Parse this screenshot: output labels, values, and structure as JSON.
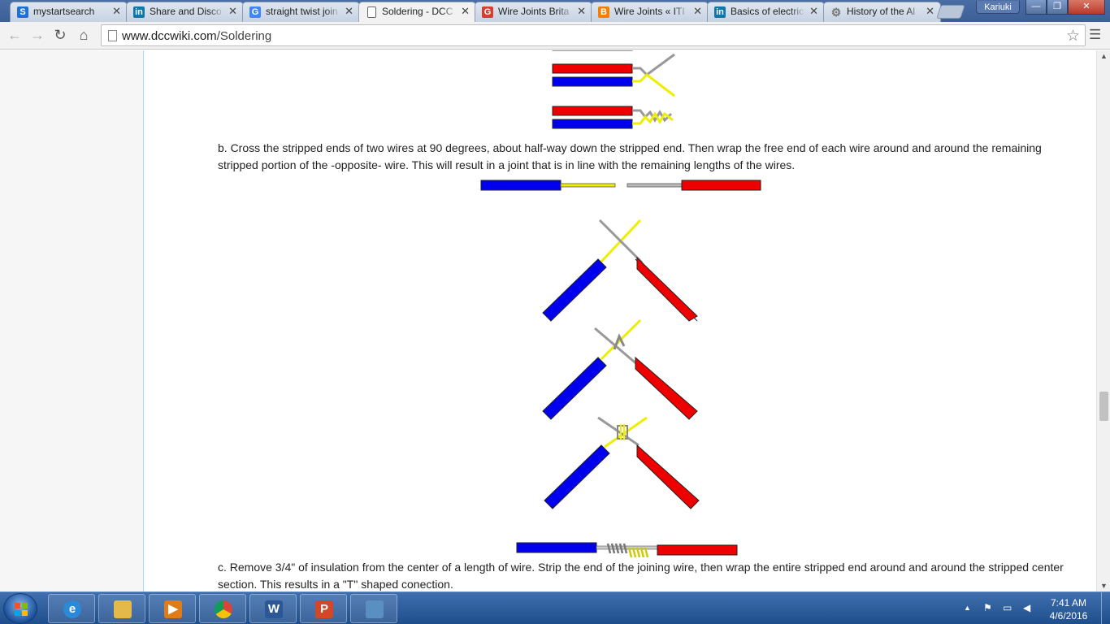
{
  "browser": {
    "tabs": [
      {
        "title": "mystartsearch",
        "icon": "s-icon",
        "icon_text": "S",
        "icon_color": "#1e6fd9",
        "active": false
      },
      {
        "title": "Share and Disco",
        "icon": "linkedin-icon",
        "icon_text": "in",
        "icon_color": "#0e76a8",
        "active": false
      },
      {
        "title": "straight twist join",
        "icon": "google-icon",
        "icon_text": "G",
        "icon_color": "#4285f4",
        "active": false
      },
      {
        "title": "Soldering - DCC",
        "icon": "page-icon",
        "icon_text": "",
        "icon_color": "#ffffff",
        "active": true
      },
      {
        "title": "Wire Joints Brita",
        "icon": "google-plus-icon",
        "icon_text": "G",
        "icon_color": "#d73d32",
        "active": false
      },
      {
        "title": "Wire Joints « ITI",
        "icon": "blogger-icon",
        "icon_text": "B",
        "icon_color": "#f57d00",
        "active": false
      },
      {
        "title": "Basics of electric",
        "icon": "linkedin-icon",
        "icon_text": "in",
        "icon_color": "#0e76a8",
        "active": false
      },
      {
        "title": "History of the Al",
        "icon": "gear-icon",
        "icon_text": "⚙",
        "icon_color": "#777777",
        "active": false
      }
    ],
    "profile_name": "Kariuki",
    "url_host": "www.dccwiki.com",
    "url_path": "/Soldering"
  },
  "page": {
    "para_b": "b. Cross the stripped ends of two wires at 90 degrees, about half-way down the stripped end. Then wrap the free end of each wire around and around the remaining stripped portion of the -opposite- wire. This will result in a joint that is in line with the remaining lengths of the wires.",
    "para_c": "c. Remove 3/4\" of insulation from the center of a length of wire. Strip the end of the joining wire, then wrap the entire stripped end around and around the stripped center section. This results in a \"T\" shaped conection."
  },
  "colors": {
    "wire_blue": "#0000ee",
    "wire_red": "#ee0000",
    "conductor_yellow": "#ffff00",
    "conductor_gray": "#a8a8a8"
  },
  "taskbar": {
    "apps": [
      {
        "name": "internet-explorer",
        "icon_text": "e",
        "color": "#2b8ad8"
      },
      {
        "name": "file-explorer",
        "icon_text": "",
        "color": "#e5b84a"
      },
      {
        "name": "media-player",
        "icon_text": "▶",
        "color": "#e07b1a"
      },
      {
        "name": "chrome",
        "icon_text": "",
        "color": "#db4437"
      },
      {
        "name": "word",
        "icon_text": "W",
        "color": "#2b5797"
      },
      {
        "name": "powerpoint",
        "icon_text": "P",
        "color": "#d24726"
      },
      {
        "name": "photo-viewer",
        "icon_text": "",
        "color": "#5a8fc2"
      }
    ],
    "time": "7:41 AM",
    "date": "4/6/2016"
  }
}
